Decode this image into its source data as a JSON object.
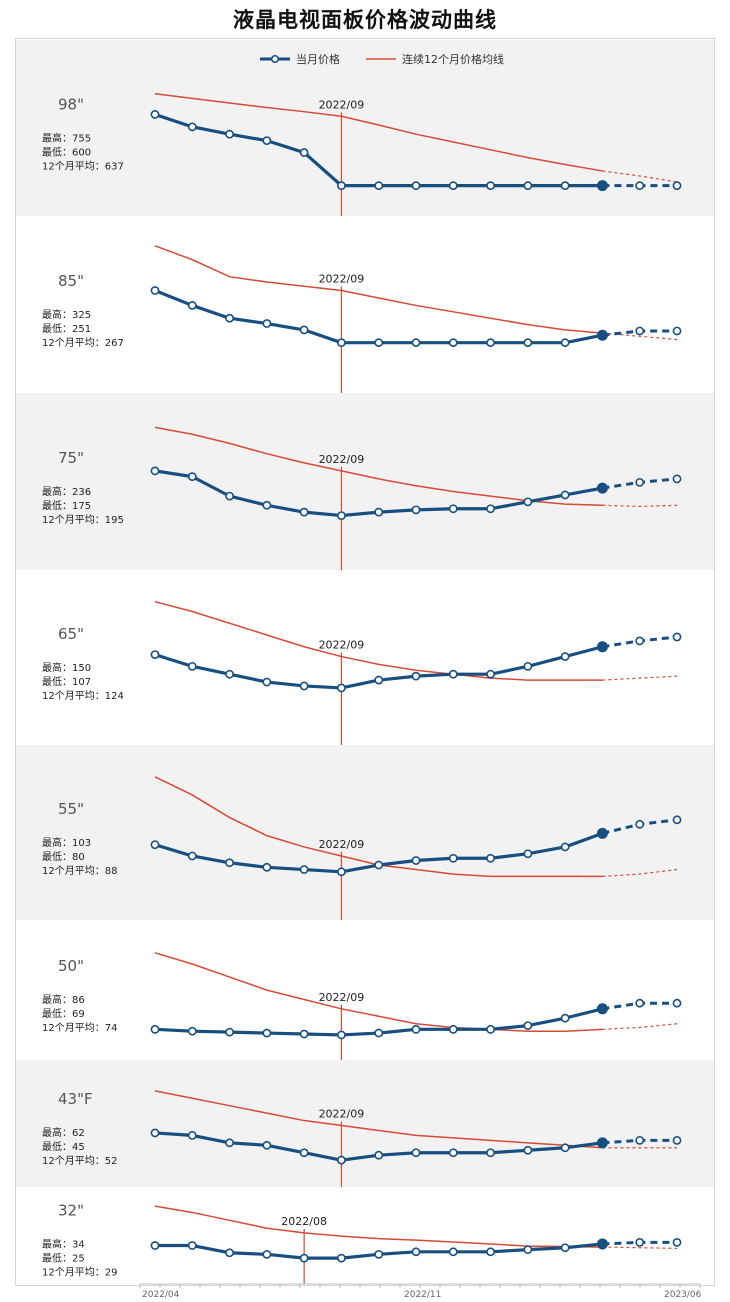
{
  "title": "液晶电视面板价格波动曲线",
  "legend": {
    "current_label": "当月价格",
    "avg_label": "连续12个月价格均线"
  },
  "colors": {
    "current": "#174f80",
    "average": "#d64a36",
    "band_gray": "#f2f2f2",
    "band_white": "#ffffff"
  },
  "x_axis": {
    "start_label": "2022/04",
    "mid_label": "2022/11",
    "end_label": "2023/06"
  },
  "chart_data": [
    {
      "type": "line",
      "size": "98\"",
      "stats": {
        "high": "最高：755",
        "low": "最低：600",
        "avg": "12个月平均：637"
      },
      "marker_label": "2022/09",
      "marker_index": 5,
      "forecast_from": 12,
      "x": [
        "2022/04",
        "2022/05",
        "2022/06",
        "2022/07",
        "2022/08",
        "2022/09",
        "2022/10",
        "2022/11",
        "2022/12",
        "2023/01",
        "2023/02",
        "2023/03",
        "2023/04",
        "2023/05",
        "2023/06"
      ],
      "series": [
        {
          "name": "当月价格",
          "values": [
            755,
            728,
            712,
            698,
            672,
            600,
            600,
            600,
            600,
            600,
            600,
            600,
            600,
            600,
            600
          ]
        },
        {
          "name": "连续12个月价格均线",
          "values": [
            800,
            790,
            780,
            770,
            761,
            751,
            732,
            712,
            695,
            678,
            661,
            646,
            632,
            621,
            608
          ]
        }
      ],
      "ylim": [
        560,
        830
      ]
    },
    {
      "type": "line",
      "size": "85\"",
      "stats": {
        "high": "最高：325",
        "low": "最低：251",
        "avg": "12个月平均：267"
      },
      "marker_label": "2022/09",
      "marker_index": 5,
      "forecast_from": 12,
      "x": [
        "2022/04",
        "2022/05",
        "2022/06",
        "2022/07",
        "2022/08",
        "2022/09",
        "2022/10",
        "2022/11",
        "2022/12",
        "2023/01",
        "2023/02",
        "2023/03",
        "2023/04",
        "2023/05",
        "2023/06"
      ],
      "series": [
        {
          "name": "当月价格",
          "values": [
            325,
            311,
            299,
            294,
            288,
            276,
            276,
            276,
            276,
            276,
            276,
            276,
            283,
            287,
            287
          ]
        },
        {
          "name": "连续12个月价格均线",
          "values": [
            367,
            354,
            338,
            333,
            329,
            325,
            318,
            311,
            305,
            299,
            293,
            288,
            285,
            282,
            279
          ]
        }
      ],
      "ylim": [
        240,
        380
      ]
    },
    {
      "type": "line",
      "size": "75\"",
      "stats": {
        "high": "最高：236",
        "low": "最低：175",
        "avg": "12个月平均：195"
      },
      "marker_label": "2022/09",
      "marker_index": 5,
      "forecast_from": 12,
      "x": [
        "2022/04",
        "2022/05",
        "2022/06",
        "2022/07",
        "2022/08",
        "2022/09",
        "2022/10",
        "2022/11",
        "2022/12",
        "2023/01",
        "2023/02",
        "2023/03",
        "2023/04",
        "2023/05",
        "2023/06"
      ],
      "series": [
        {
          "name": "当月价格",
          "values": [
            236,
            231,
            214,
            206,
            200,
            197,
            200,
            202,
            203,
            203,
            209,
            215,
            221,
            226,
            229
          ]
        },
        {
          "name": "连续12个月价格均线",
          "values": [
            274,
            268,
            260,
            251,
            243,
            236,
            229,
            223,
            218,
            214,
            210,
            207,
            206,
            205,
            206
          ]
        }
      ],
      "ylim": [
        160,
        290
      ]
    },
    {
      "type": "line",
      "size": "65\"",
      "stats": {
        "high": "最高：150",
        "low": "最低：107",
        "avg": "12个月平均：124"
      },
      "marker_label": "2022/09",
      "marker_index": 5,
      "forecast_from": 12,
      "x": [
        "2022/04",
        "2022/05",
        "2022/06",
        "2022/07",
        "2022/08",
        "2022/09",
        "2022/10",
        "2022/11",
        "2022/12",
        "2023/01",
        "2023/02",
        "2023/03",
        "2023/04",
        "2023/05",
        "2023/06"
      ],
      "series": [
        {
          "name": "当月价格",
          "values": [
            150,
            144,
            140,
            136,
            134,
            133,
            137,
            139,
            140,
            140,
            144,
            149,
            154,
            157,
            159
          ]
        },
        {
          "name": "连续12个月价格均线",
          "values": [
            177,
            172,
            166,
            160,
            154,
            149,
            145,
            142,
            140,
            138,
            137,
            137,
            137,
            138,
            139
          ]
        }
      ],
      "ylim": [
        110,
        185
      ]
    },
    {
      "type": "line",
      "size": "55\"",
      "stats": {
        "high": "最高：103",
        "low": "最低：80",
        "avg": "12个月平均：88"
      },
      "marker_label": "2022/09",
      "marker_index": 5,
      "forecast_from": 12,
      "x": [
        "2022/04",
        "2022/05",
        "2022/06",
        "2022/07",
        "2022/08",
        "2022/09",
        "2022/10",
        "2022/11",
        "2022/12",
        "2023/01",
        "2023/02",
        "2023/03",
        "2023/04",
        "2023/05",
        "2023/06"
      ],
      "series": [
        {
          "name": "当月价格",
          "values": [
            103,
            98,
            95,
            93,
            92,
            91,
            94,
            96,
            97,
            97,
            99,
            102,
            108,
            112,
            114
          ]
        },
        {
          "name": "连续12个月价格均线",
          "values": [
            133,
            125,
            115,
            107,
            102,
            98,
            94,
            92,
            90,
            89,
            89,
            89,
            89,
            90,
            92
          ]
        }
      ],
      "ylim": [
        75,
        140
      ]
    },
    {
      "type": "line",
      "size": "50\"",
      "stats": {
        "high": "最高：86",
        "low": "最低：69",
        "avg": "12个月平均：74"
      },
      "marker_label": "2022/09",
      "marker_index": 5,
      "forecast_from": 12,
      "x": [
        "2022/04",
        "2022/05",
        "2022/06",
        "2022/07",
        "2022/08",
        "2022/09",
        "2022/10",
        "2022/11",
        "2022/12",
        "2023/01",
        "2023/02",
        "2023/03",
        "2023/04",
        "2023/05",
        "2023/06"
      ],
      "series": [
        {
          "name": "当月价格",
          "values": [
            75,
            74,
            73.5,
            73,
            72.5,
            72,
            73,
            75,
            75,
            75,
            77,
            81,
            86,
            89,
            89
          ]
        },
        {
          "name": "连续12个月价格均线",
          "values": [
            116,
            110,
            103,
            96,
            91,
            86,
            82,
            78,
            76,
            75,
            74,
            74,
            75,
            76,
            78
          ]
        }
      ],
      "ylim": [
        65,
        125
      ]
    },
    {
      "type": "line",
      "size": "43\"F",
      "stats": {
        "high": "最高：62",
        "low": "最低：45",
        "avg": "12个月平均：52"
      },
      "marker_label": "2022/09",
      "marker_index": 5,
      "forecast_from": 12,
      "x": [
        "2022/04",
        "2022/05",
        "2022/06",
        "2022/07",
        "2022/08",
        "2022/09",
        "2022/10",
        "2022/11",
        "2022/12",
        "2023/01",
        "2023/02",
        "2023/03",
        "2023/04",
        "2023/05",
        "2023/06"
      ],
      "series": [
        {
          "name": "当月价格",
          "values": [
            62,
            61,
            58,
            57,
            54,
            51,
            53,
            54,
            54,
            54,
            55,
            56,
            58,
            59,
            59
          ]
        },
        {
          "name": "连续12个月价格均线",
          "values": [
            79,
            76,
            73,
            70,
            67,
            65,
            63,
            61,
            60,
            59,
            58,
            57,
            56,
            56,
            56
          ]
        }
      ],
      "ylim": [
        45,
        85
      ]
    },
    {
      "type": "line",
      "size": "32\"",
      "stats": {
        "high": "最高：34",
        "low": "最低：25",
        "avg": "12个月平均：29"
      },
      "marker_label": "2022/08",
      "marker_index": 4,
      "forecast_from": 12,
      "x": [
        "2022/04",
        "2022/05",
        "2022/06",
        "2022/07",
        "2022/08",
        "2022/09",
        "2022/10",
        "2022/11",
        "2022/12",
        "2023/01",
        "2023/02",
        "2023/03",
        "2023/04",
        "2023/05",
        "2023/06"
      ],
      "series": [
        {
          "name": "当月价格",
          "values": [
            31.5,
            31.5,
            29.2,
            28.7,
            27.5,
            27.5,
            28.7,
            29.5,
            29.5,
            29.5,
            30.2,
            30.8,
            32.0,
            32.5,
            32.5
          ]
        },
        {
          "name": "连续12个月价格均线",
          "values": [
            44,
            42,
            39.5,
            37,
            35.5,
            34.5,
            33.7,
            33.2,
            32.6,
            32.0,
            31.3,
            31.2,
            31.0,
            30.8,
            30.6
          ]
        }
      ],
      "ylim": [
        25,
        45
      ]
    }
  ]
}
